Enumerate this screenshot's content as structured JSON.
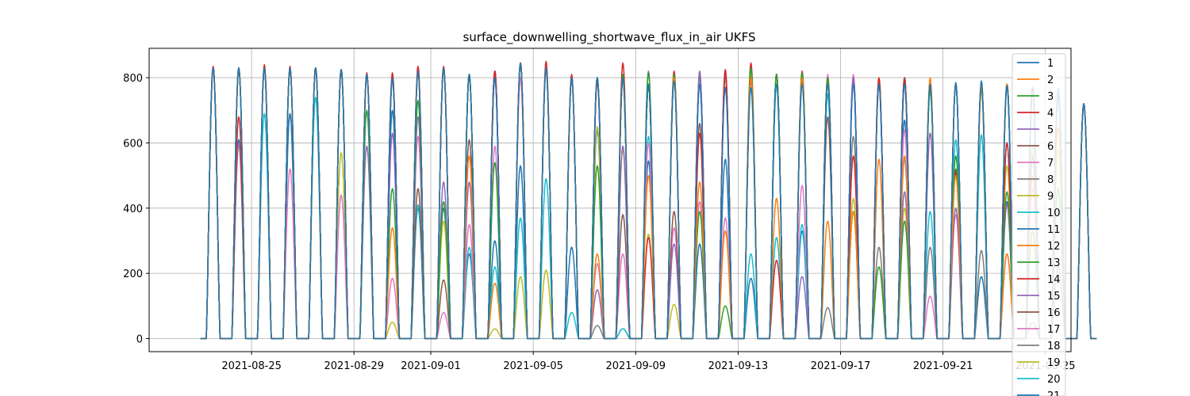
{
  "chart_data": {
    "type": "line",
    "title": "surface_downwelling_shortwave_flux_in_air UKFS",
    "xlabel": "",
    "ylabel": "",
    "x_range": [
      "2021-08-21",
      "2021-09-26"
    ],
    "x_ticks": [
      "2021-08-25",
      "2021-08-29",
      "2021-09-01",
      "2021-09-05",
      "2021-09-09",
      "2021-09-13",
      "2021-09-17",
      "2021-09-21",
      "2021-09-25"
    ],
    "ylim": [
      -40,
      890
    ],
    "y_ticks": [
      0,
      200,
      400,
      600,
      800
    ],
    "grid": true,
    "legend_position": "right",
    "days": [
      "2021-08-23",
      "2021-08-24",
      "2021-08-25",
      "2021-08-26",
      "2021-08-27",
      "2021-08-28",
      "2021-08-29",
      "2021-08-30",
      "2021-08-31",
      "2021-09-01",
      "2021-09-02",
      "2021-09-03",
      "2021-09-04",
      "2021-09-05",
      "2021-09-06",
      "2021-09-07",
      "2021-09-08",
      "2021-09-09",
      "2021-09-10",
      "2021-09-11",
      "2021-09-12",
      "2021-09-13",
      "2021-09-14",
      "2021-09-15",
      "2021-09-16",
      "2021-09-17",
      "2021-09-18",
      "2021-09-19",
      "2021-09-20",
      "2021-09-21",
      "2021-09-22",
      "2021-09-23",
      "2021-09-24",
      "2021-09-25",
      "2021-09-26"
    ],
    "series": [
      {
        "name": "1",
        "color": "#1f77b4",
        "daily_peak": [
          830,
          830,
          830,
          830,
          830,
          825,
          810,
          800,
          820,
          830,
          810,
          800,
          845,
          830,
          800,
          800,
          800,
          780,
          790,
          780,
          770,
          770,
          780,
          780,
          780,
          780,
          780,
          780,
          780,
          780,
          790,
          775,
          760,
          760,
          720
        ]
      },
      {
        "name": "2",
        "color": "#ff7f0e",
        "daily_peak": [
          830,
          830,
          830,
          830,
          830,
          825,
          810,
          340,
          820,
          830,
          560,
          170,
          845,
          830,
          800,
          260,
          800,
          500,
          800,
          480,
          330,
          800,
          430,
          800,
          360,
          390,
          550,
          560,
          800,
          500,
          780,
          260,
          500,
          650,
          720
        ]
      },
      {
        "name": "3",
        "color": "#2ca02c",
        "daily_peak": [
          830,
          830,
          830,
          830,
          830,
          825,
          700,
          460,
          730,
          420,
          810,
          540,
          845,
          830,
          800,
          530,
          810,
          815,
          810,
          390,
          100,
          830,
          810,
          815,
          800,
          390,
          220,
          360,
          760,
          560,
          775,
          450,
          330,
          460,
          720
        ]
      },
      {
        "name": "4",
        "color": "#d62728",
        "daily_peak": [
          835,
          680,
          840,
          835,
          830,
          825,
          815,
          815,
          835,
          835,
          810,
          820,
          845,
          850,
          810,
          790,
          845,
          310,
          820,
          630,
          825,
          845,
          240,
          820,
          800,
          560,
          800,
          790,
          780,
          510,
          780,
          600,
          770,
          760,
          720
        ]
      },
      {
        "name": "5",
        "color": "#9467bd",
        "daily_peak": [
          830,
          600,
          830,
          830,
          830,
          825,
          590,
          630,
          680,
          480,
          480,
          800,
          845,
          830,
          800,
          150,
          590,
          820,
          290,
          820,
          820,
          800,
          810,
          190,
          800,
          800,
          790,
          450,
          630,
          400,
          770,
          410,
          760,
          740,
          720
        ]
      },
      {
        "name": "6",
        "color": "#8c564b",
        "daily_peak": [
          830,
          830,
          830,
          830,
          830,
          825,
          810,
          800,
          460,
          180,
          610,
          810,
          845,
          830,
          800,
          790,
          380,
          780,
          390,
          660,
          810,
          800,
          810,
          800,
          680,
          800,
          790,
          800,
          780,
          520,
          780,
          600,
          560,
          760,
          720
        ]
      },
      {
        "name": "7",
        "color": "#e377c2",
        "daily_peak": [
          830,
          830,
          830,
          520,
          830,
          440,
          810,
          185,
          620,
          80,
          350,
          590,
          800,
          820,
          800,
          230,
          260,
          600,
          340,
          420,
          370,
          800,
          810,
          470,
          810,
          810,
          790,
          640,
          130,
          380,
          780,
          260,
          460,
          750,
          720
        ]
      },
      {
        "name": "8",
        "color": "#7f7f7f",
        "daily_peak": [
          830,
          830,
          830,
          830,
          830,
          825,
          810,
          800,
          820,
          830,
          810,
          820,
          845,
          830,
          800,
          40,
          800,
          780,
          800,
          810,
          810,
          800,
          810,
          800,
          95,
          620,
          280,
          790,
          280,
          780,
          270,
          770,
          50,
          220,
          720
        ]
      },
      {
        "name": "9",
        "color": "#bcbd22",
        "daily_peak": [
          830,
          590,
          830,
          830,
          830,
          570,
          810,
          50,
          830,
          360,
          810,
          30,
          190,
          210,
          800,
          650,
          580,
          320,
          105,
          820,
          800,
          820,
          810,
          800,
          790,
          430,
          800,
          400,
          775,
          775,
          760,
          530,
          590,
          580,
          720
        ]
      },
      {
        "name": "10",
        "color": "#17becf",
        "daily_peak": [
          830,
          830,
          690,
          830,
          740,
          825,
          810,
          800,
          410,
          830,
          280,
          220,
          370,
          490,
          80,
          800,
          30,
          620,
          810,
          800,
          810,
          260,
          310,
          350,
          750,
          800,
          780,
          550,
          390,
          610,
          625,
          770,
          770,
          770,
          720
        ]
      },
      {
        "name": "11",
        "color": "#1f77b4",
        "daily_peak": [
          830,
          610,
          830,
          690,
          830,
          825,
          810,
          700,
          400,
          400,
          260,
          300,
          530,
          830,
          280,
          640,
          30,
          545,
          810,
          290,
          550,
          185,
          810,
          330,
          800,
          800,
          780,
          670,
          780,
          785,
          190,
          420,
          765,
          760,
          720
        ]
      },
      {
        "name": "12",
        "color": "#ff7f0e",
        "daily_peak": [
          830,
          830,
          830,
          830,
          830,
          825,
          810,
          800,
          820,
          830,
          810,
          820,
          845,
          830,
          800,
          800,
          800,
          780,
          800,
          810,
          810,
          800,
          810,
          800,
          800,
          800,
          790,
          800,
          780,
          780,
          780,
          780,
          770,
          760,
          720
        ]
      },
      {
        "name": "13",
        "color": "#2ca02c",
        "daily_peak": [
          830,
          830,
          830,
          830,
          830,
          825,
          810,
          800,
          820,
          830,
          810,
          820,
          845,
          830,
          800,
          800,
          800,
          780,
          800,
          810,
          810,
          800,
          810,
          800,
          800,
          800,
          790,
          800,
          780,
          780,
          780,
          780,
          770,
          760,
          720
        ]
      },
      {
        "name": "14",
        "color": "#d62728",
        "daily_peak": [
          830,
          830,
          830,
          830,
          830,
          825,
          810,
          800,
          820,
          830,
          810,
          820,
          845,
          830,
          800,
          800,
          800,
          780,
          800,
          810,
          810,
          800,
          810,
          800,
          800,
          800,
          790,
          800,
          780,
          780,
          780,
          780,
          770,
          760,
          720
        ]
      },
      {
        "name": "15",
        "color": "#9467bd",
        "daily_peak": [
          830,
          830,
          830,
          830,
          830,
          825,
          810,
          800,
          820,
          830,
          810,
          820,
          845,
          830,
          800,
          800,
          800,
          780,
          800,
          810,
          810,
          800,
          810,
          800,
          800,
          800,
          790,
          800,
          780,
          780,
          780,
          780,
          770,
          760,
          720
        ]
      },
      {
        "name": "16",
        "color": "#8c564b",
        "daily_peak": [
          830,
          830,
          830,
          830,
          830,
          825,
          810,
          800,
          820,
          830,
          810,
          820,
          845,
          830,
          800,
          800,
          800,
          780,
          800,
          810,
          810,
          800,
          810,
          800,
          800,
          800,
          790,
          800,
          780,
          780,
          780,
          780,
          770,
          760,
          720
        ]
      },
      {
        "name": "17",
        "color": "#e377c2",
        "daily_peak": [
          830,
          830,
          830,
          830,
          830,
          825,
          810,
          800,
          820,
          830,
          810,
          820,
          845,
          830,
          800,
          800,
          800,
          780,
          800,
          810,
          810,
          800,
          810,
          800,
          800,
          800,
          790,
          800,
          780,
          780,
          780,
          780,
          770,
          760,
          720
        ]
      },
      {
        "name": "18",
        "color": "#7f7f7f",
        "daily_peak": [
          830,
          830,
          830,
          830,
          830,
          825,
          810,
          800,
          820,
          830,
          810,
          820,
          845,
          830,
          800,
          800,
          800,
          780,
          800,
          810,
          810,
          800,
          810,
          800,
          800,
          800,
          790,
          800,
          780,
          780,
          780,
          780,
          770,
          760,
          720
        ]
      },
      {
        "name": "19",
        "color": "#bcbd22",
        "daily_peak": [
          830,
          830,
          830,
          830,
          830,
          825,
          810,
          800,
          820,
          830,
          810,
          820,
          845,
          830,
          800,
          800,
          800,
          780,
          800,
          810,
          810,
          800,
          810,
          800,
          800,
          800,
          790,
          800,
          780,
          780,
          780,
          780,
          770,
          760,
          720
        ]
      },
      {
        "name": "20",
        "color": "#17becf",
        "daily_peak": [
          830,
          830,
          830,
          830,
          830,
          825,
          810,
          800,
          820,
          830,
          810,
          820,
          845,
          830,
          800,
          800,
          800,
          780,
          800,
          810,
          810,
          800,
          810,
          800,
          800,
          800,
          790,
          800,
          780,
          780,
          780,
          780,
          770,
          760,
          720
        ]
      },
      {
        "name": "21",
        "color": "#1f77b4",
        "daily_peak": [
          830,
          830,
          830,
          830,
          830,
          825,
          810,
          800,
          820,
          830,
          810,
          820,
          845,
          830,
          800,
          800,
          800,
          780,
          800,
          810,
          810,
          800,
          810,
          800,
          800,
          800,
          790,
          800,
          780,
          780,
          780,
          780,
          770,
          760,
          720
        ]
      }
    ]
  }
}
